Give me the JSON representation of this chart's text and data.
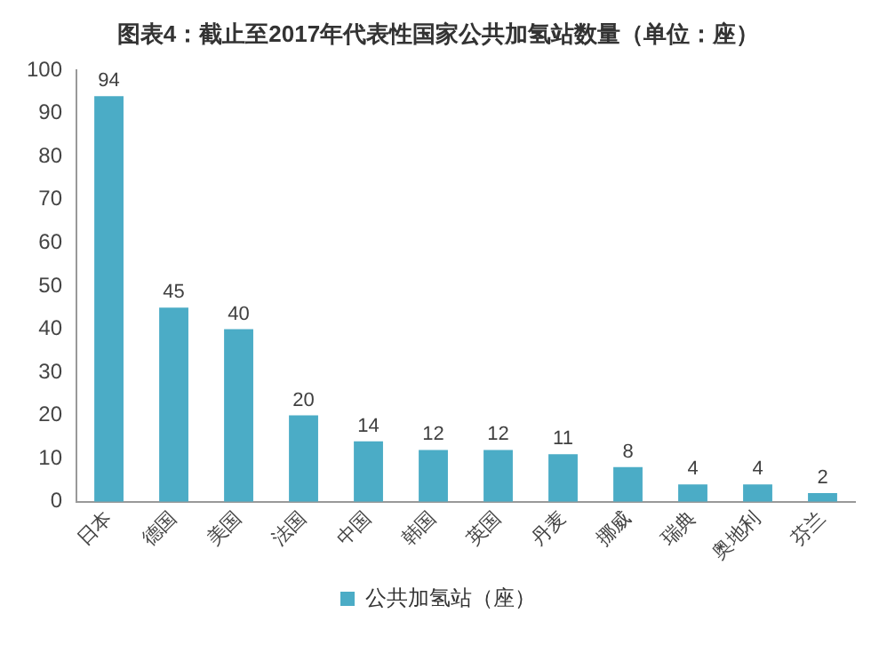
{
  "chart_data": {
    "type": "bar",
    "title": "图表4：截止至2017年代表性国家公共加氢站数量（单位：座）",
    "categories": [
      "日本",
      "德国",
      "美国",
      "法国",
      "中国",
      "韩国",
      "英国",
      "丹麦",
      "挪威",
      "瑞典",
      "奥地利",
      "芬兰"
    ],
    "series": [
      {
        "name": "公共加氢站（座）",
        "color": "#4bacc6",
        "values": [
          94,
          45,
          40,
          20,
          14,
          12,
          12,
          11,
          8,
          4,
          4,
          2
        ]
      }
    ],
    "ylim": [
      0,
      100
    ],
    "yticks": [
      0,
      10,
      20,
      30,
      40,
      50,
      60,
      70,
      80,
      90,
      100
    ],
    "grid": false,
    "legend": "bottom",
    "data_labels": true
  }
}
